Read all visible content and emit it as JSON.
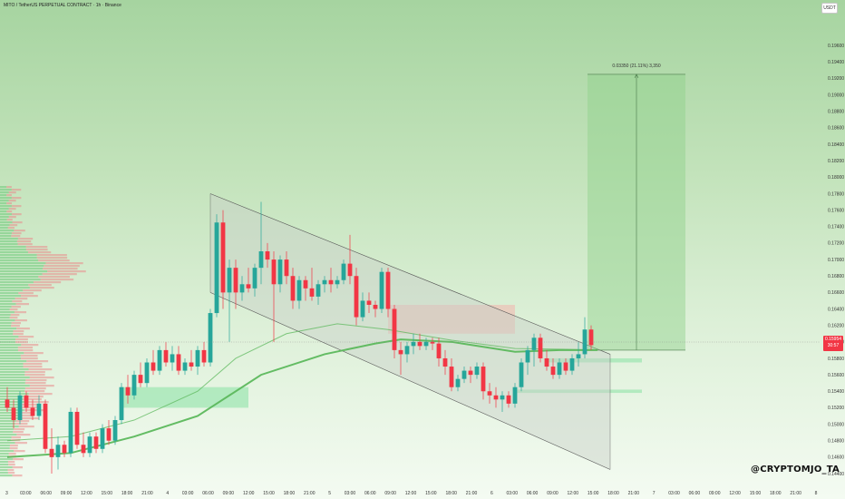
{
  "header": {
    "title": "MITO / TetherUS PERPETUAL CONTRACT · 1h · Binance"
  },
  "currency": "USDT",
  "watermark": "@CRYPTOMJO_TA",
  "current_price": {
    "value": "0.15954",
    "countdown": "30:57"
  },
  "measure": {
    "label": "0.03350 (21.11%) 3,350"
  },
  "colors": {
    "up": "#26a69a",
    "down": "#f23645",
    "ma": "#5cb85c",
    "channel_fill": "#c8cfc8",
    "channel_line": "#555555",
    "target_fill": "#8fd18a"
  },
  "chart_data": {
    "type": "candlestick",
    "timeframe": "1h",
    "ylim": [
      0.144,
      0.198
    ],
    "y_ticks": [
      "0.19600",
      "0.19400",
      "0.19200",
      "0.19000",
      "0.18800",
      "0.18600",
      "0.18400",
      "0.18200",
      "0.18000",
      "0.17800",
      "0.17600",
      "0.17400",
      "0.17200",
      "0.17000",
      "0.16800",
      "0.16600",
      "0.16400",
      "0.16200",
      "0.16000",
      "0.15800",
      "0.15600",
      "0.15400",
      "0.15200",
      "0.15000",
      "0.14800",
      "0.14600",
      "0.14400"
    ],
    "x_ticks": [
      "3",
      "03:00",
      "06:00",
      "09:00",
      "12:00",
      "15:00",
      "18:00",
      "21:00",
      "4",
      "03:00",
      "06:00",
      "09:00",
      "12:00",
      "15:00",
      "18:00",
      "21:00",
      "5",
      "03:00",
      "06:00",
      "09:00",
      "12:00",
      "15:00",
      "18:00",
      "21:00",
      "6",
      "03:00",
      "06:00",
      "09:00",
      "12:00",
      "15:00",
      "18:00",
      "21:00",
      "7",
      "03:00",
      "06:00",
      "09:00",
      "12:00",
      "15:00",
      "18:00",
      "21:00",
      "8"
    ],
    "candles": [
      {
        "o": 0.153,
        "h": 0.1545,
        "l": 0.1515,
        "c": 0.152
      },
      {
        "o": 0.152,
        "h": 0.153,
        "l": 0.1495,
        "c": 0.1505
      },
      {
        "o": 0.1505,
        "h": 0.154,
        "l": 0.15,
        "c": 0.1535
      },
      {
        "o": 0.1535,
        "h": 0.154,
        "l": 0.1515,
        "c": 0.152
      },
      {
        "o": 0.152,
        "h": 0.153,
        "l": 0.1505,
        "c": 0.151
      },
      {
        "o": 0.151,
        "h": 0.1535,
        "l": 0.1505,
        "c": 0.1525
      },
      {
        "o": 0.1525,
        "h": 0.153,
        "l": 0.1465,
        "c": 0.147
      },
      {
        "o": 0.147,
        "h": 0.1495,
        "l": 0.144,
        "c": 0.146
      },
      {
        "o": 0.146,
        "h": 0.1485,
        "l": 0.1445,
        "c": 0.1475
      },
      {
        "o": 0.1475,
        "h": 0.148,
        "l": 0.146,
        "c": 0.1465
      },
      {
        "o": 0.1465,
        "h": 0.152,
        "l": 0.146,
        "c": 0.1515
      },
      {
        "o": 0.1515,
        "h": 0.152,
        "l": 0.147,
        "c": 0.1475
      },
      {
        "o": 0.1475,
        "h": 0.149,
        "l": 0.146,
        "c": 0.1465
      },
      {
        "o": 0.1465,
        "h": 0.149,
        "l": 0.146,
        "c": 0.1485
      },
      {
        "o": 0.1485,
        "h": 0.149,
        "l": 0.1465,
        "c": 0.147
      },
      {
        "o": 0.147,
        "h": 0.15,
        "l": 0.1465,
        "c": 0.1495
      },
      {
        "o": 0.1495,
        "h": 0.1505,
        "l": 0.1475,
        "c": 0.148
      },
      {
        "o": 0.148,
        "h": 0.151,
        "l": 0.1475,
        "c": 0.1505
      },
      {
        "o": 0.1505,
        "h": 0.155,
        "l": 0.15,
        "c": 0.1545
      },
      {
        "o": 0.1545,
        "h": 0.156,
        "l": 0.1525,
        "c": 0.1535
      },
      {
        "o": 0.1535,
        "h": 0.1565,
        "l": 0.153,
        "c": 0.156
      },
      {
        "o": 0.156,
        "h": 0.1575,
        "l": 0.1545,
        "c": 0.155
      },
      {
        "o": 0.155,
        "h": 0.158,
        "l": 0.1545,
        "c": 0.1575
      },
      {
        "o": 0.1575,
        "h": 0.159,
        "l": 0.156,
        "c": 0.1565
      },
      {
        "o": 0.1565,
        "h": 0.1595,
        "l": 0.156,
        "c": 0.159
      },
      {
        "o": 0.159,
        "h": 0.16,
        "l": 0.157,
        "c": 0.1575
      },
      {
        "o": 0.1575,
        "h": 0.1595,
        "l": 0.1565,
        "c": 0.1585
      },
      {
        "o": 0.1585,
        "h": 0.1595,
        "l": 0.156,
        "c": 0.1565
      },
      {
        "o": 0.1565,
        "h": 0.158,
        "l": 0.156,
        "c": 0.1575
      },
      {
        "o": 0.1575,
        "h": 0.159,
        "l": 0.1565,
        "c": 0.157
      },
      {
        "o": 0.157,
        "h": 0.1595,
        "l": 0.156,
        "c": 0.159
      },
      {
        "o": 0.159,
        "h": 0.16,
        "l": 0.157,
        "c": 0.1575
      },
      {
        "o": 0.1575,
        "h": 0.164,
        "l": 0.157,
        "c": 0.1635
      },
      {
        "o": 0.1635,
        "h": 0.1755,
        "l": 0.163,
        "c": 0.1745
      },
      {
        "o": 0.1745,
        "h": 0.176,
        "l": 0.164,
        "c": 0.166
      },
      {
        "o": 0.166,
        "h": 0.17,
        "l": 0.16,
        "c": 0.169
      },
      {
        "o": 0.169,
        "h": 0.17,
        "l": 0.164,
        "c": 0.166
      },
      {
        "o": 0.166,
        "h": 0.168,
        "l": 0.165,
        "c": 0.167
      },
      {
        "o": 0.167,
        "h": 0.169,
        "l": 0.166,
        "c": 0.1665
      },
      {
        "o": 0.1665,
        "h": 0.1695,
        "l": 0.1655,
        "c": 0.169
      },
      {
        "o": 0.169,
        "h": 0.177,
        "l": 0.167,
        "c": 0.171
      },
      {
        "o": 0.171,
        "h": 0.172,
        "l": 0.169,
        "c": 0.17
      },
      {
        "o": 0.17,
        "h": 0.171,
        "l": 0.16,
        "c": 0.167
      },
      {
        "o": 0.167,
        "h": 0.1705,
        "l": 0.166,
        "c": 0.17
      },
      {
        "o": 0.17,
        "h": 0.171,
        "l": 0.167,
        "c": 0.168
      },
      {
        "o": 0.168,
        "h": 0.169,
        "l": 0.164,
        "c": 0.165
      },
      {
        "o": 0.165,
        "h": 0.168,
        "l": 0.164,
        "c": 0.1675
      },
      {
        "o": 0.1675,
        "h": 0.168,
        "l": 0.165,
        "c": 0.1665
      },
      {
        "o": 0.1665,
        "h": 0.169,
        "l": 0.165,
        "c": 0.1655
      },
      {
        "o": 0.1655,
        "h": 0.1675,
        "l": 0.1645,
        "c": 0.167
      },
      {
        "o": 0.167,
        "h": 0.168,
        "l": 0.166,
        "c": 0.1675
      },
      {
        "o": 0.1675,
        "h": 0.169,
        "l": 0.166,
        "c": 0.167
      },
      {
        "o": 0.167,
        "h": 0.168,
        "l": 0.1665,
        "c": 0.1675
      },
      {
        "o": 0.1675,
        "h": 0.17,
        "l": 0.167,
        "c": 0.1695
      },
      {
        "o": 0.1695,
        "h": 0.173,
        "l": 0.167,
        "c": 0.168
      },
      {
        "o": 0.168,
        "h": 0.169,
        "l": 0.162,
        "c": 0.163
      },
      {
        "o": 0.163,
        "h": 0.166,
        "l": 0.1625,
        "c": 0.165
      },
      {
        "o": 0.165,
        "h": 0.166,
        "l": 0.1635,
        "c": 0.1645
      },
      {
        "o": 0.1645,
        "h": 0.165,
        "l": 0.163,
        "c": 0.164
      },
      {
        "o": 0.164,
        "h": 0.169,
        "l": 0.1635,
        "c": 0.1685
      },
      {
        "o": 0.1685,
        "h": 0.169,
        "l": 0.163,
        "c": 0.164
      },
      {
        "o": 0.164,
        "h": 0.1645,
        "l": 0.158,
        "c": 0.159
      },
      {
        "o": 0.159,
        "h": 0.16,
        "l": 0.156,
        "c": 0.1585
      },
      {
        "o": 0.1585,
        "h": 0.16,
        "l": 0.1575,
        "c": 0.1595
      },
      {
        "o": 0.1595,
        "h": 0.161,
        "l": 0.1585,
        "c": 0.16
      },
      {
        "o": 0.16,
        "h": 0.161,
        "l": 0.159,
        "c": 0.1595
      },
      {
        "o": 0.1595,
        "h": 0.1605,
        "l": 0.159,
        "c": 0.16
      },
      {
        "o": 0.16,
        "h": 0.1605,
        "l": 0.159,
        "c": 0.1598
      },
      {
        "o": 0.1598,
        "h": 0.1605,
        "l": 0.157,
        "c": 0.158
      },
      {
        "o": 0.158,
        "h": 0.159,
        "l": 0.156,
        "c": 0.157
      },
      {
        "o": 0.157,
        "h": 0.158,
        "l": 0.154,
        "c": 0.1545
      },
      {
        "o": 0.1545,
        "h": 0.156,
        "l": 0.154,
        "c": 0.1555
      },
      {
        "o": 0.1555,
        "h": 0.157,
        "l": 0.155,
        "c": 0.1565
      },
      {
        "o": 0.1565,
        "h": 0.157,
        "l": 0.155,
        "c": 0.156
      },
      {
        "o": 0.156,
        "h": 0.1575,
        "l": 0.1555,
        "c": 0.157
      },
      {
        "o": 0.157,
        "h": 0.1575,
        "l": 0.153,
        "c": 0.154
      },
      {
        "o": 0.154,
        "h": 0.155,
        "l": 0.1525,
        "c": 0.1535
      },
      {
        "o": 0.1535,
        "h": 0.1545,
        "l": 0.152,
        "c": 0.153
      },
      {
        "o": 0.153,
        "h": 0.154,
        "l": 0.1515,
        "c": 0.1535
      },
      {
        "o": 0.1535,
        "h": 0.154,
        "l": 0.152,
        "c": 0.1525
      },
      {
        "o": 0.1525,
        "h": 0.155,
        "l": 0.152,
        "c": 0.1545
      },
      {
        "o": 0.1545,
        "h": 0.158,
        "l": 0.154,
        "c": 0.1575
      },
      {
        "o": 0.1575,
        "h": 0.1595,
        "l": 0.156,
        "c": 0.159
      },
      {
        "o": 0.159,
        "h": 0.161,
        "l": 0.157,
        "c": 0.1605
      },
      {
        "o": 0.1605,
        "h": 0.161,
        "l": 0.1575,
        "c": 0.158
      },
      {
        "o": 0.158,
        "h": 0.159,
        "l": 0.1565,
        "c": 0.157
      },
      {
        "o": 0.157,
        "h": 0.158,
        "l": 0.1555,
        "c": 0.156
      },
      {
        "o": 0.156,
        "h": 0.158,
        "l": 0.1555,
        "c": 0.1575
      },
      {
        "o": 0.1575,
        "h": 0.158,
        "l": 0.156,
        "c": 0.1565
      },
      {
        "o": 0.1565,
        "h": 0.1585,
        "l": 0.156,
        "c": 0.158
      },
      {
        "o": 0.158,
        "h": 0.16,
        "l": 0.157,
        "c": 0.1585
      },
      {
        "o": 0.1585,
        "h": 0.163,
        "l": 0.158,
        "c": 0.1615
      },
      {
        "o": 0.1615,
        "h": 0.162,
        "l": 0.159,
        "c": 0.1596
      }
    ],
    "moving_averages": [
      {
        "name": "",
        "color": "#5cb85c",
        "values": [
          {
            "i": 0,
            "v": 0.146
          },
          {
            "i": 10,
            "v": 0.1465
          },
          {
            "i": 20,
            "v": 0.1485
          },
          {
            "i": 30,
            "v": 0.151
          },
          {
            "i": 34,
            "v": 0.153
          },
          {
            "i": 40,
            "v": 0.156
          },
          {
            "i": 50,
            "v": 0.1585
          },
          {
            "i": 58,
            "v": 0.1598
          },
          {
            "i": 62,
            "v": 0.1603
          },
          {
            "i": 70,
            "v": 0.16
          },
          {
            "i": 80,
            "v": 0.1588
          },
          {
            "i": 87,
            "v": 0.159
          },
          {
            "i": 93,
            "v": 0.159
          }
        ]
      },
      {
        "name": "",
        "color": "#5cb85c",
        "values": [
          {
            "i": 0,
            "v": 0.148
          },
          {
            "i": 10,
            "v": 0.1485
          },
          {
            "i": 20,
            "v": 0.1505
          },
          {
            "i": 30,
            "v": 0.154
          },
          {
            "i": 36,
            "v": 0.158
          },
          {
            "i": 44,
            "v": 0.161
          },
          {
            "i": 52,
            "v": 0.1622
          },
          {
            "i": 60,
            "v": 0.1615
          },
          {
            "i": 70,
            "v": 0.1602
          },
          {
            "i": 80,
            "v": 0.1592
          },
          {
            "i": 88,
            "v": 0.1591
          },
          {
            "i": 93,
            "v": 0.159
          }
        ]
      }
    ],
    "channel": {
      "upper": [
        {
          "i": 32,
          "v": 0.178
        },
        {
          "i": 95,
          "v": 0.1585
        }
      ],
      "lower": [
        {
          "i": 32,
          "v": 0.166
        },
        {
          "i": 95,
          "v": 0.1445
        }
      ]
    },
    "zones": [
      {
        "from_i": 18,
        "to_i": 38,
        "low": 0.152,
        "high": 0.1545,
        "color": "#8fe3a8"
      },
      {
        "from_i": 60,
        "to_i": 80,
        "low": 0.161,
        "high": 0.1645,
        "color": "#f0b9b0"
      },
      {
        "from_i": 85,
        "to_i": 100,
        "low": 0.1575,
        "high": 0.158,
        "color": "#8fe3a8"
      },
      {
        "from_i": 80,
        "to_i": 100,
        "low": 0.1538,
        "high": 0.1542,
        "color": "#8fe3a8"
      }
    ],
    "target_box": {
      "from_i": 91,
      "to_i": 104,
      "low": 0.159,
      "high": 0.1925
    },
    "last_price": 0.15954
  }
}
